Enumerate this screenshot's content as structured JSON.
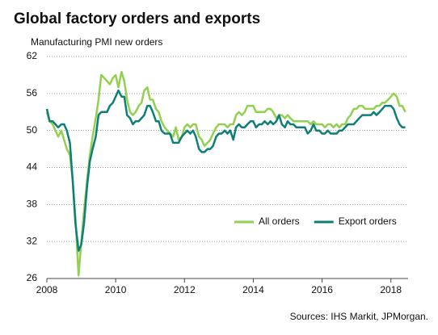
{
  "chart_data": {
    "type": "line",
    "title": "Global factory orders and exports",
    "y_label": "Manufacturing PMI new orders",
    "source": "Sources: IHS Markit, JPMorgan.",
    "x": [
      2008.0,
      2008.08,
      2008.17,
      2008.25,
      2008.33,
      2008.42,
      2008.5,
      2008.58,
      2008.67,
      2008.75,
      2008.83,
      2008.92,
      2009.0,
      2009.08,
      2009.17,
      2009.25,
      2009.33,
      2009.42,
      2009.5,
      2009.58,
      2009.67,
      2009.75,
      2009.83,
      2009.92,
      2010.0,
      2010.08,
      2010.17,
      2010.25,
      2010.33,
      2010.42,
      2010.5,
      2010.58,
      2010.67,
      2010.75,
      2010.83,
      2010.92,
      2011.0,
      2011.08,
      2011.17,
      2011.25,
      2011.33,
      2011.42,
      2011.5,
      2011.58,
      2011.67,
      2011.75,
      2011.83,
      2011.92,
      2012.0,
      2012.08,
      2012.17,
      2012.25,
      2012.33,
      2012.42,
      2012.5,
      2012.58,
      2012.67,
      2012.75,
      2012.83,
      2012.92,
      2013.0,
      2013.08,
      2013.17,
      2013.25,
      2013.33,
      2013.42,
      2013.5,
      2013.58,
      2013.67,
      2013.75,
      2013.83,
      2013.92,
      2014.0,
      2014.08,
      2014.17,
      2014.25,
      2014.33,
      2014.42,
      2014.5,
      2014.58,
      2014.67,
      2014.75,
      2014.83,
      2014.92,
      2015.0,
      2015.08,
      2015.17,
      2015.25,
      2015.33,
      2015.42,
      2015.5,
      2015.58,
      2015.67,
      2015.75,
      2015.83,
      2015.92,
      2016.0,
      2016.08,
      2016.17,
      2016.25,
      2016.33,
      2016.42,
      2016.5,
      2016.58,
      2016.67,
      2016.75,
      2016.83,
      2016.92,
      2017.0,
      2017.08,
      2017.17,
      2017.25,
      2017.33,
      2017.42,
      2017.5,
      2017.58,
      2017.67,
      2017.75,
      2017.83,
      2017.92,
      2018.0,
      2018.08,
      2018.17,
      2018.25,
      2018.33,
      2018.42
    ],
    "series": [
      {
        "name": "All orders",
        "color": "#92d050",
        "values": [
          53,
          51.5,
          51,
          50,
          49,
          50,
          48.5,
          47,
          46,
          42,
          36,
          26.5,
          32,
          37,
          42,
          46,
          49,
          52,
          55,
          59,
          58.5,
          58,
          57.5,
          58.5,
          59,
          57,
          59.5,
          58,
          55,
          53,
          52.5,
          53,
          54,
          54.5,
          56.5,
          57,
          55,
          55,
          53.5,
          53,
          51.5,
          50.5,
          50,
          49.5,
          49,
          50.5,
          48.5,
          49,
          50.5,
          51,
          50.5,
          51,
          51,
          49,
          48.5,
          47.5,
          48,
          48.5,
          49.5,
          50.5,
          51,
          51,
          51,
          50.5,
          51,
          51,
          52.5,
          53,
          52.5,
          53,
          54,
          54,
          54,
          53,
          53,
          53,
          53,
          53.5,
          53.5,
          53,
          52,
          52.5,
          52.5,
          52,
          52.5,
          52,
          51.5,
          51.5,
          51.5,
          51.5,
          51.5,
          51.5,
          51,
          51.5,
          51,
          51,
          51,
          50.5,
          51,
          51,
          50.5,
          51,
          50.5,
          51,
          51,
          52,
          52.5,
          53.5,
          53.5,
          54,
          54,
          53.5,
          53.5,
          53.5,
          53.5,
          54,
          54,
          54.5,
          54.5,
          55,
          55.5,
          56,
          55.5,
          54,
          54,
          53
        ]
      },
      {
        "name": "Export orders",
        "color": "#0e7f77",
        "values": [
          53.5,
          51.5,
          51.5,
          51,
          50.5,
          51,
          51,
          50,
          48,
          42,
          35,
          30.5,
          31.5,
          35,
          41,
          45,
          47,
          49,
          52.5,
          53,
          53,
          53,
          54,
          54.5,
          55.5,
          56.5,
          55.5,
          55.5,
          52.5,
          52,
          51,
          51.5,
          51.5,
          52,
          52.5,
          54,
          54,
          53,
          51.5,
          51.5,
          50,
          49.5,
          49.5,
          49.5,
          48,
          48,
          48,
          49,
          49.5,
          50,
          49.5,
          50,
          49,
          47,
          46.5,
          46.5,
          47,
          47,
          47.5,
          49,
          49.5,
          49.5,
          50,
          49.5,
          50,
          48.5,
          50.5,
          51,
          50.5,
          50.5,
          51,
          51.5,
          51.5,
          50.5,
          51,
          51,
          51.5,
          51,
          51.5,
          51,
          51.5,
          52.5,
          51,
          50.5,
          51.5,
          51,
          51,
          50.5,
          50.5,
          50.5,
          50.5,
          49.5,
          50,
          51,
          50,
          50,
          49.5,
          49.5,
          50,
          49.5,
          49.5,
          49.5,
          50,
          50,
          50.5,
          51,
          51,
          51,
          51.5,
          52,
          52.5,
          52.5,
          52.5,
          52.5,
          53,
          52.5,
          53,
          53.5,
          54,
          54,
          54,
          53.5,
          52,
          51,
          50.5,
          50.5
        ]
      }
    ],
    "xlim": [
      2008,
      2018.5
    ],
    "xticks": [
      2008,
      2010,
      2012,
      2014,
      2016,
      2018
    ],
    "ylim": [
      26,
      62
    ],
    "yticks": [
      26,
      32,
      38,
      44,
      50,
      56,
      62
    ],
    "grid": true,
    "legend": "lower right"
  }
}
